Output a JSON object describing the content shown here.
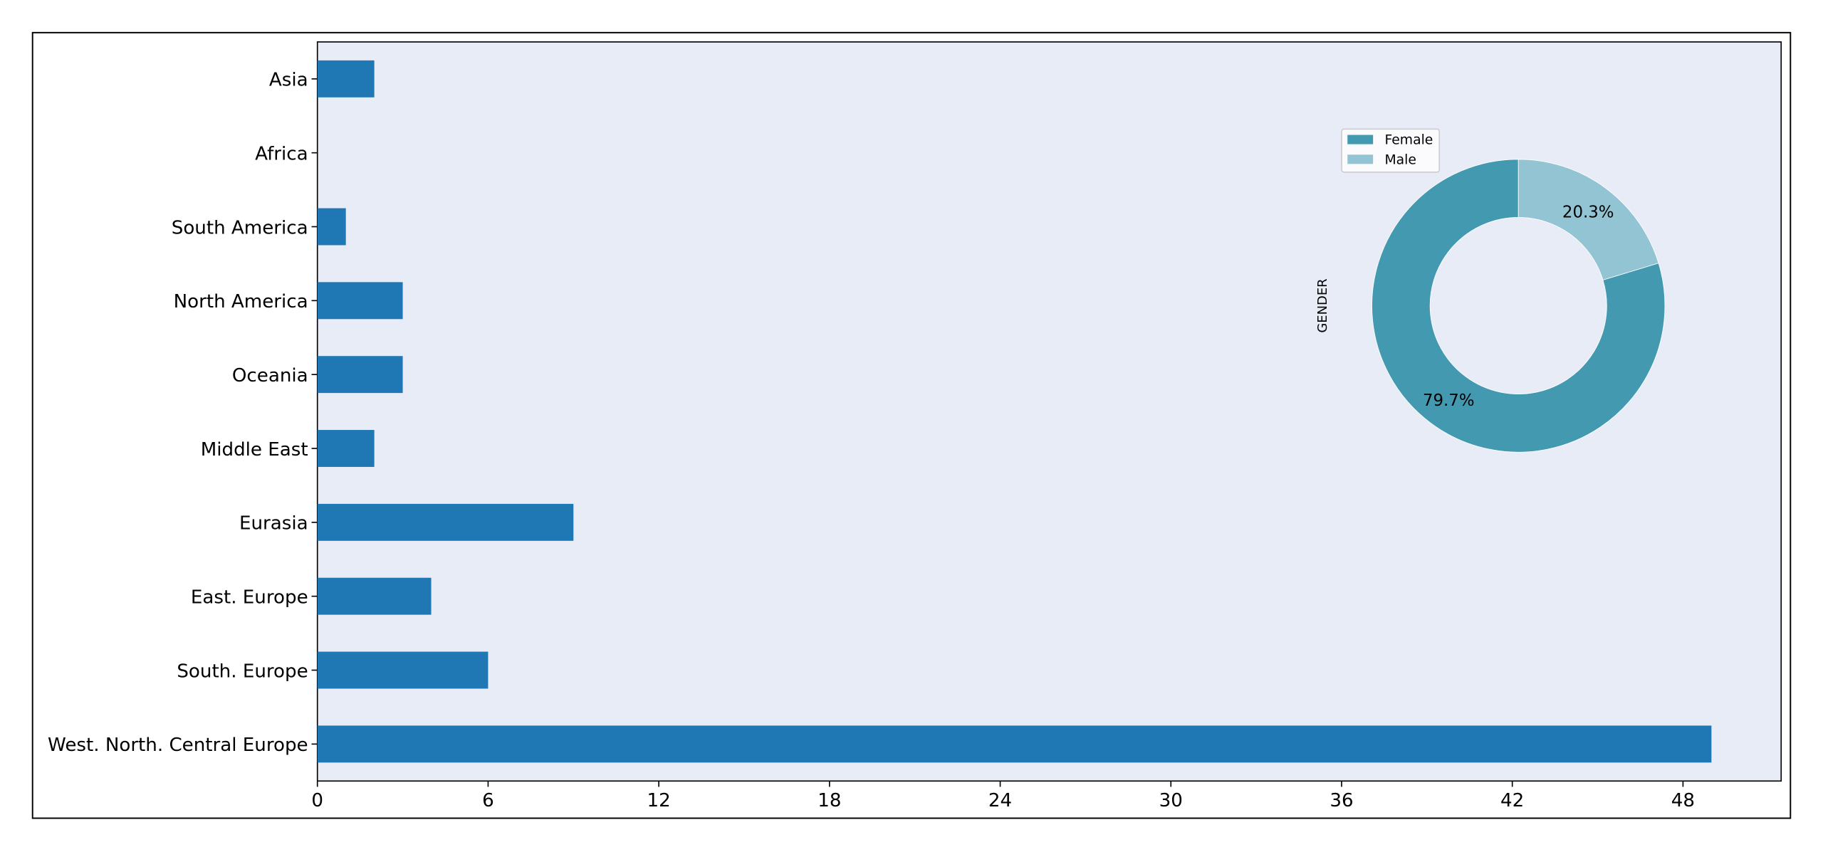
{
  "chart_data": [
    {
      "type": "barh",
      "categories": [
        "Asia",
        "Africa",
        "South America",
        "North America",
        "Oceania",
        "Middle East",
        "Eurasia",
        "East. Europe",
        "South. Europe",
        "West. North. Central Europe"
      ],
      "values": [
        2,
        0,
        1,
        3,
        3,
        2,
        9,
        4,
        6,
        49
      ],
      "color": "#1f77b4",
      "xlim": [
        0,
        51.45
      ],
      "xticks": [
        0,
        6,
        12,
        18,
        24,
        30,
        36,
        42,
        48
      ]
    },
    {
      "type": "pie",
      "ylabel": "GENDER",
      "categories": [
        "Female",
        "Male"
      ],
      "values": [
        79.7,
        20.3
      ],
      "value_labels": [
        "79.7%",
        "20.3%"
      ],
      "colors": [
        "#4299b0",
        "#93c4d4"
      ],
      "legend": "upper left"
    }
  ]
}
